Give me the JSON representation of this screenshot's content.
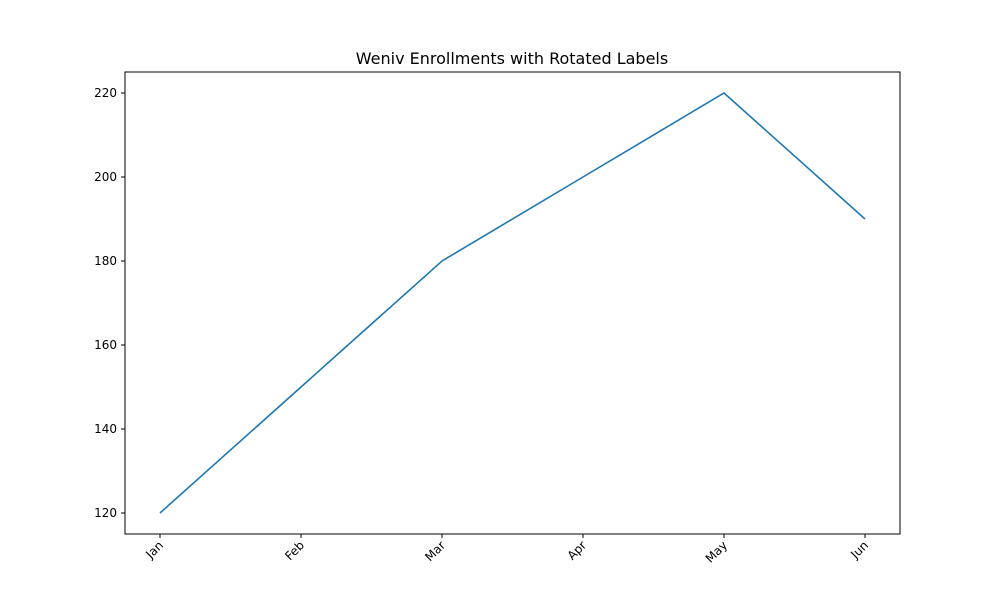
{
  "chart_data": {
    "type": "line",
    "title": "Weniv Enrollments with Rotated Labels",
    "xlabel": "",
    "ylabel": "",
    "categories": [
      "Jan",
      "Feb",
      "Mar",
      "Apr",
      "May",
      "Jun"
    ],
    "series": [
      {
        "values": [
          120,
          150,
          180,
          200,
          220,
          190
        ],
        "color": "#1f77b4"
      }
    ],
    "yticks": [
      120,
      140,
      160,
      180,
      200,
      220
    ],
    "ylim": [
      115,
      225
    ],
    "x_tick_rotation_deg": 45,
    "grid": false,
    "legend": "none"
  }
}
